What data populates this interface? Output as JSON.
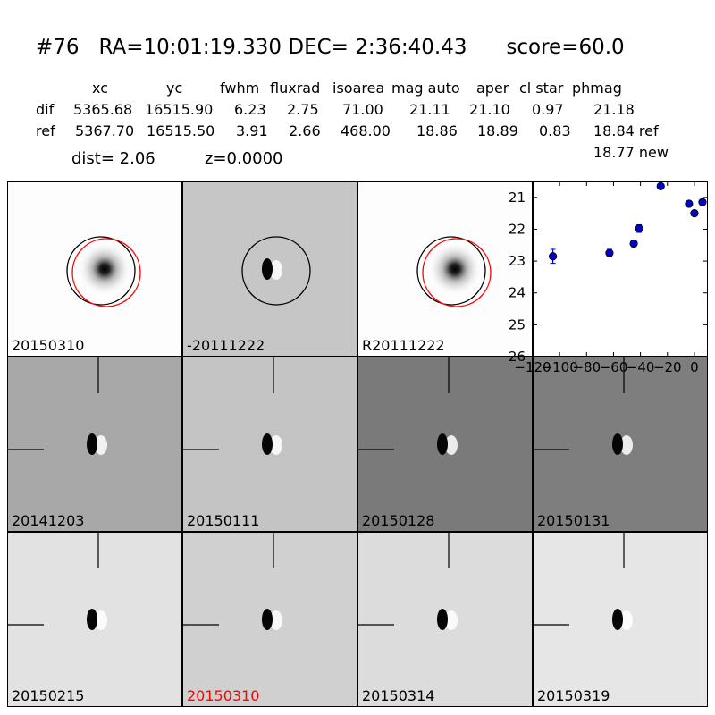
{
  "title": {
    "id": "#76",
    "ra": "RA=10:01:19.330",
    "dec": "DEC= 2:36:40.43",
    "score": "score=60.0"
  },
  "table": {
    "headers": [
      "xc",
      "yc",
      "fwhm",
      "fluxrad",
      "isoarea",
      "mag auto",
      "aper",
      "cl star",
      "phmag"
    ],
    "rows": [
      {
        "label": "dif",
        "values": [
          "5365.68",
          "16515.90",
          "6.23",
          "2.75",
          "71.00",
          "21.11",
          "21.10",
          "0.97",
          "21.18"
        ]
      },
      {
        "label": "ref",
        "values": [
          "5367.70",
          "16515.50",
          "3.91",
          "2.66",
          "468.00",
          "18.86",
          "18.89",
          "0.83",
          "18.84 ref"
        ]
      }
    ],
    "extra": "18.77 new"
  },
  "dist_text": "dist=  2.06",
  "z_text": "z=0.0000",
  "panels": [
    {
      "date": "20150310",
      "bg": "#fdfdfd",
      "blob": "psf",
      "circles": true,
      "red": false
    },
    {
      "date": "-20111222",
      "bg": "#c6c6c6",
      "blob": "dipole",
      "circles": "black",
      "red": false
    },
    {
      "date": "R20111222",
      "bg": "#fdfdfd",
      "blob": "psf",
      "circles": true,
      "red": false
    },
    {
      "date": "20141203",
      "bg": "#a8a8a8",
      "blob": "dipole",
      "circles": false,
      "red": false
    },
    {
      "date": "20150111",
      "bg": "#c4c4c4",
      "blob": "dipole",
      "circles": false,
      "red": false
    },
    {
      "date": "20150128",
      "bg": "#7a7a7a",
      "blob": "dipole",
      "circles": false,
      "red": false
    },
    {
      "date": "20150131",
      "bg": "#7e7e7e",
      "blob": "dipole",
      "circles": false,
      "red": false
    },
    {
      "date": "20150215",
      "bg": "#e2e2e2",
      "blob": "dipole",
      "circles": false,
      "red": false
    },
    {
      "date": "20150310",
      "bg": "#d0d0d0",
      "blob": "dipole",
      "circles": false,
      "red": true
    },
    {
      "date": "20150314",
      "bg": "#dcdcdc",
      "blob": "dipole",
      "circles": false,
      "red": false
    },
    {
      "date": "20150319",
      "bg": "#e6e6e6",
      "blob": "dipole",
      "circles": false,
      "red": false
    }
  ],
  "chart_data": {
    "type": "scatter",
    "x": [
      -105,
      -63,
      -45,
      -41,
      -25,
      -4,
      0,
      6
    ],
    "y": [
      22.85,
      22.75,
      22.45,
      21.98,
      20.65,
      21.2,
      21.5,
      21.15
    ],
    "yerr": [
      0.22,
      0.12,
      0.1,
      0.12,
      0.05,
      0.06,
      0.08,
      0.07
    ],
    "xlim": [
      -120,
      10
    ],
    "ylim": [
      26,
      20.5
    ],
    "xticks": [
      -120,
      -100,
      -80,
      -60,
      -40,
      -20,
      0
    ],
    "xtick_labels": [
      "−120",
      "−100",
      "−80",
      "−60",
      "−40",
      "−20",
      "0"
    ],
    "yticks": [
      21,
      22,
      23,
      24,
      25,
      26
    ],
    "marker_color": "#0000cc"
  }
}
